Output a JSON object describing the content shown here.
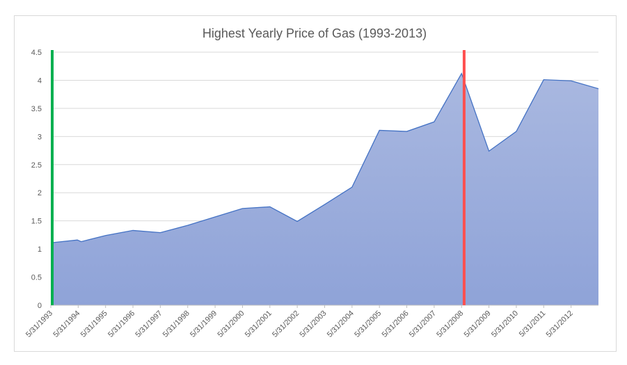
{
  "chart_data": {
    "type": "area",
    "title": "Highest Yearly Price of Gas (1993-2013)",
    "xlabel": "",
    "ylabel": "",
    "ylim": [
      0,
      4.5
    ],
    "y_ticks": [
      "0",
      "0.5",
      "1",
      "1.5",
      "2",
      "2.5",
      "3",
      "3.5",
      "4",
      "4.5"
    ],
    "x_range": [
      "1993-05-31",
      "2013-05-31"
    ],
    "x_ticks": [
      "5/31/1993",
      "5/31/1994",
      "5/31/1995",
      "5/31/1996",
      "5/31/1997",
      "5/31/1998",
      "5/31/1999",
      "5/31/2000",
      "5/31/2001",
      "5/31/2002",
      "5/31/2003",
      "5/31/2004",
      "5/31/2005",
      "5/31/2006",
      "5/31/2007",
      "5/31/2008",
      "5/31/2009",
      "5/31/2010",
      "5/31/2011",
      "5/31/2012"
    ],
    "grid": true,
    "colors": {
      "area_fill": "#8fa3d8",
      "area_line": "#4472c4",
      "marker_start": "#00b050",
      "marker_peak": "#ff5050"
    },
    "series": [
      {
        "x": [
          "1993-05-31",
          "1994-05-20",
          "1994-07-10",
          "1995-05-31",
          "1996-05-31",
          "1997-05-31",
          "1998-05-31",
          "1999-05-31",
          "2000-05-31",
          "2001-05-31",
          "2002-05-31",
          "2003-05-31",
          "2004-05-31",
          "2005-05-31",
          "2006-05-31",
          "2007-05-31",
          "2008-05-31",
          "2009-05-31",
          "2010-05-31",
          "2011-05-31",
          "2012-05-31",
          "2013-05-31"
        ],
        "values": [
          1.11,
          1.16,
          1.13,
          1.24,
          1.33,
          1.29,
          1.42,
          1.57,
          1.72,
          1.75,
          1.49,
          1.79,
          2.1,
          3.11,
          3.09,
          3.26,
          4.12,
          2.74,
          3.09,
          4.01,
          3.99,
          3.85
        ]
      }
    ],
    "vertical_markers": [
      {
        "x": "1993-05-31",
        "color": "#00b050"
      },
      {
        "x": "2008-07-04",
        "color": "#ff5050"
      }
    ]
  }
}
